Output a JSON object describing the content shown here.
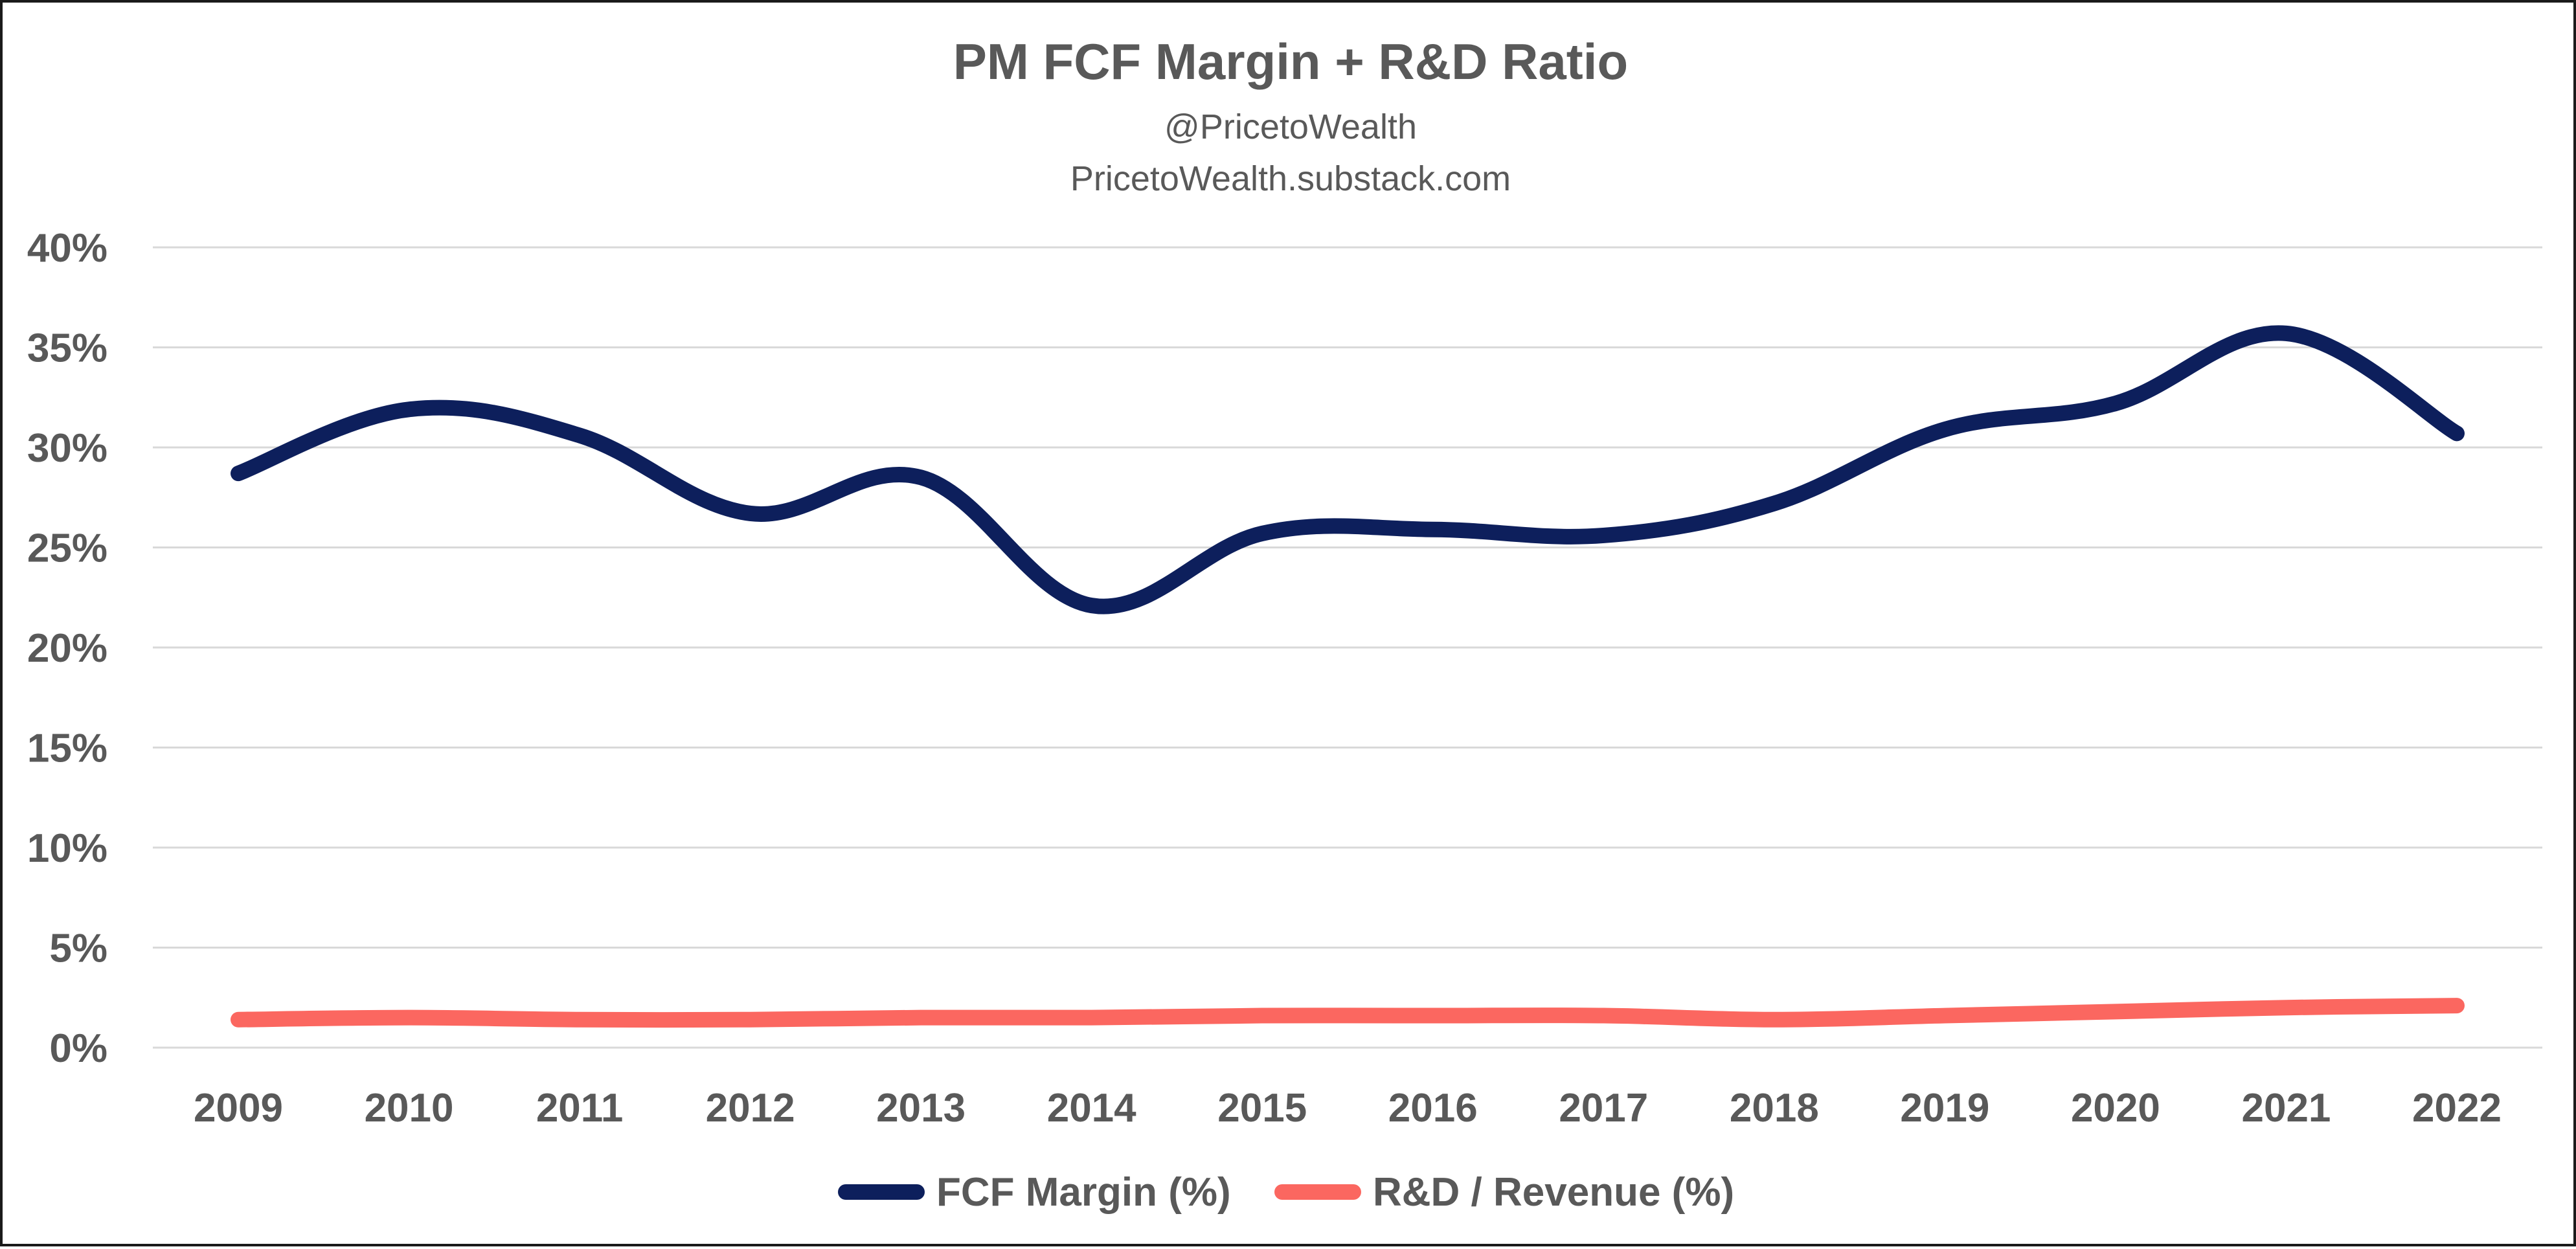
{
  "chart_data": {
    "type": "line",
    "title": "PM FCF Margin + R&D Ratio",
    "subtitles": [
      "@PricetoWealth",
      "PricetoWealth.substack.com"
    ],
    "x": [
      "2009",
      "2010",
      "2011",
      "2012",
      "2013",
      "2014",
      "2015",
      "2016",
      "2017",
      "2018",
      "2019",
      "2020",
      "2021",
      "2022"
    ],
    "ylim": [
      0,
      40
    ],
    "y_ticks": [
      0,
      5,
      10,
      15,
      20,
      25,
      30,
      35,
      40
    ],
    "y_tick_labels": [
      "0%",
      "5%",
      "10%",
      "15%",
      "20%",
      "25%",
      "30%",
      "35%",
      "40%"
    ],
    "grid": true,
    "smooth": true,
    "legend_position": "bottom",
    "series": [
      {
        "name": "FCF Margin (%)",
        "color": "#0d1f5c",
        "values": [
          28.7,
          31.9,
          30.6,
          26.7,
          28.5,
          22.1,
          25.7,
          25.9,
          25.6,
          27.2,
          30.9,
          32.2,
          35.7,
          30.7
        ]
      },
      {
        "name": "R&D / Revenue (%)",
        "color": "#fb6760",
        "values": [
          1.4,
          1.5,
          1.4,
          1.4,
          1.5,
          1.5,
          1.6,
          1.6,
          1.6,
          1.4,
          1.6,
          1.8,
          2.0,
          2.1
        ]
      }
    ]
  }
}
